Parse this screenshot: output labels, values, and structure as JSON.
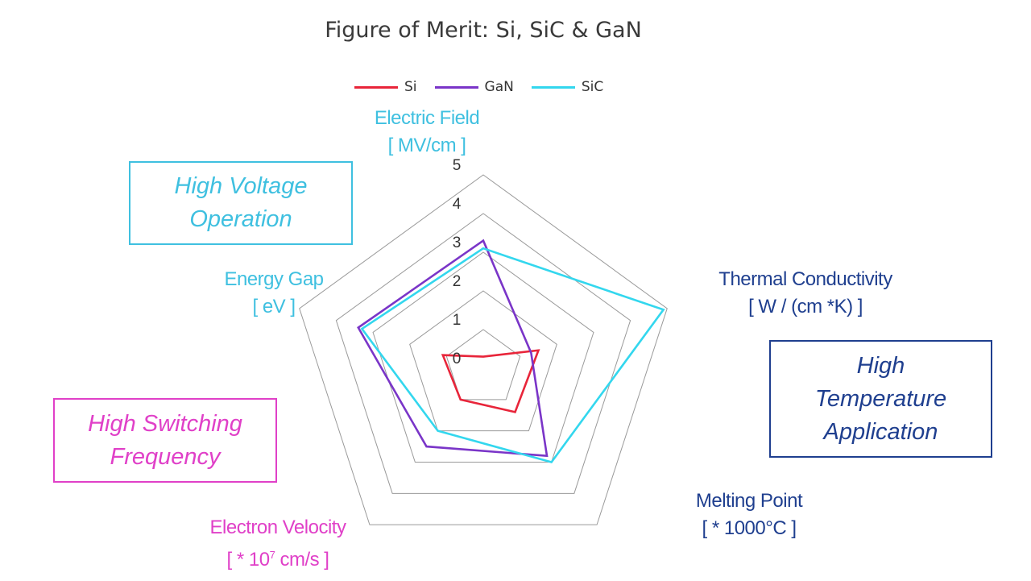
{
  "chart_data": {
    "type": "radar",
    "title": "Figure of Merit: Si, SiC & GaN",
    "axes": [
      {
        "key": "electric_field",
        "name": "Electric Field",
        "unit": "[ MV/cm ]",
        "color": "#3fc0e0"
      },
      {
        "key": "thermal_conductivity",
        "name": "Thermal Conductivity",
        "unit": "[ W / (cm *K) ]",
        "color": "#1f3f8f"
      },
      {
        "key": "melting_point",
        "name": "Melting Point",
        "unit": "[ * 1000°C ]",
        "color": "#1f3f8f"
      },
      {
        "key": "electron_velocity",
        "name": "Electron Velocity",
        "unit_prefix": "[ * 10",
        "unit_sup": "7",
        "unit_suffix": " cm/s ]",
        "color": "#e040c8"
      },
      {
        "key": "energy_gap",
        "name": "Energy Gap",
        "unit": "[ eV ]",
        "color": "#3fc0e0"
      }
    ],
    "rlim": [
      0,
      5
    ],
    "ticks": [
      "0",
      "1",
      "2",
      "3",
      "4",
      "5"
    ],
    "series": [
      {
        "name": "Si",
        "color": "#e8253a",
        "values": [
          0.3,
          1.5,
          1.4,
          1.0,
          1.1
        ]
      },
      {
        "name": "GaN",
        "color": "#7a35c8",
        "values": [
          3.3,
          1.3,
          2.8,
          2.5,
          3.4
        ]
      },
      {
        "name": "SiC",
        "color": "#33d7ee",
        "values": [
          3.1,
          4.9,
          3.0,
          2.0,
          3.3
        ]
      }
    ],
    "grid": true,
    "legend_position": "top"
  },
  "annotations": {
    "high_voltage": {
      "line1": "High Voltage",
      "line2": "Operation",
      "color": "#3fc0e0"
    },
    "high_temperature": {
      "line1": "High",
      "line2": "Temperature",
      "line3": "Application",
      "color": "#1f3f8f"
    },
    "high_switching": {
      "line1": "High Switching",
      "line2": "Frequency",
      "color": "#e040c8"
    }
  }
}
